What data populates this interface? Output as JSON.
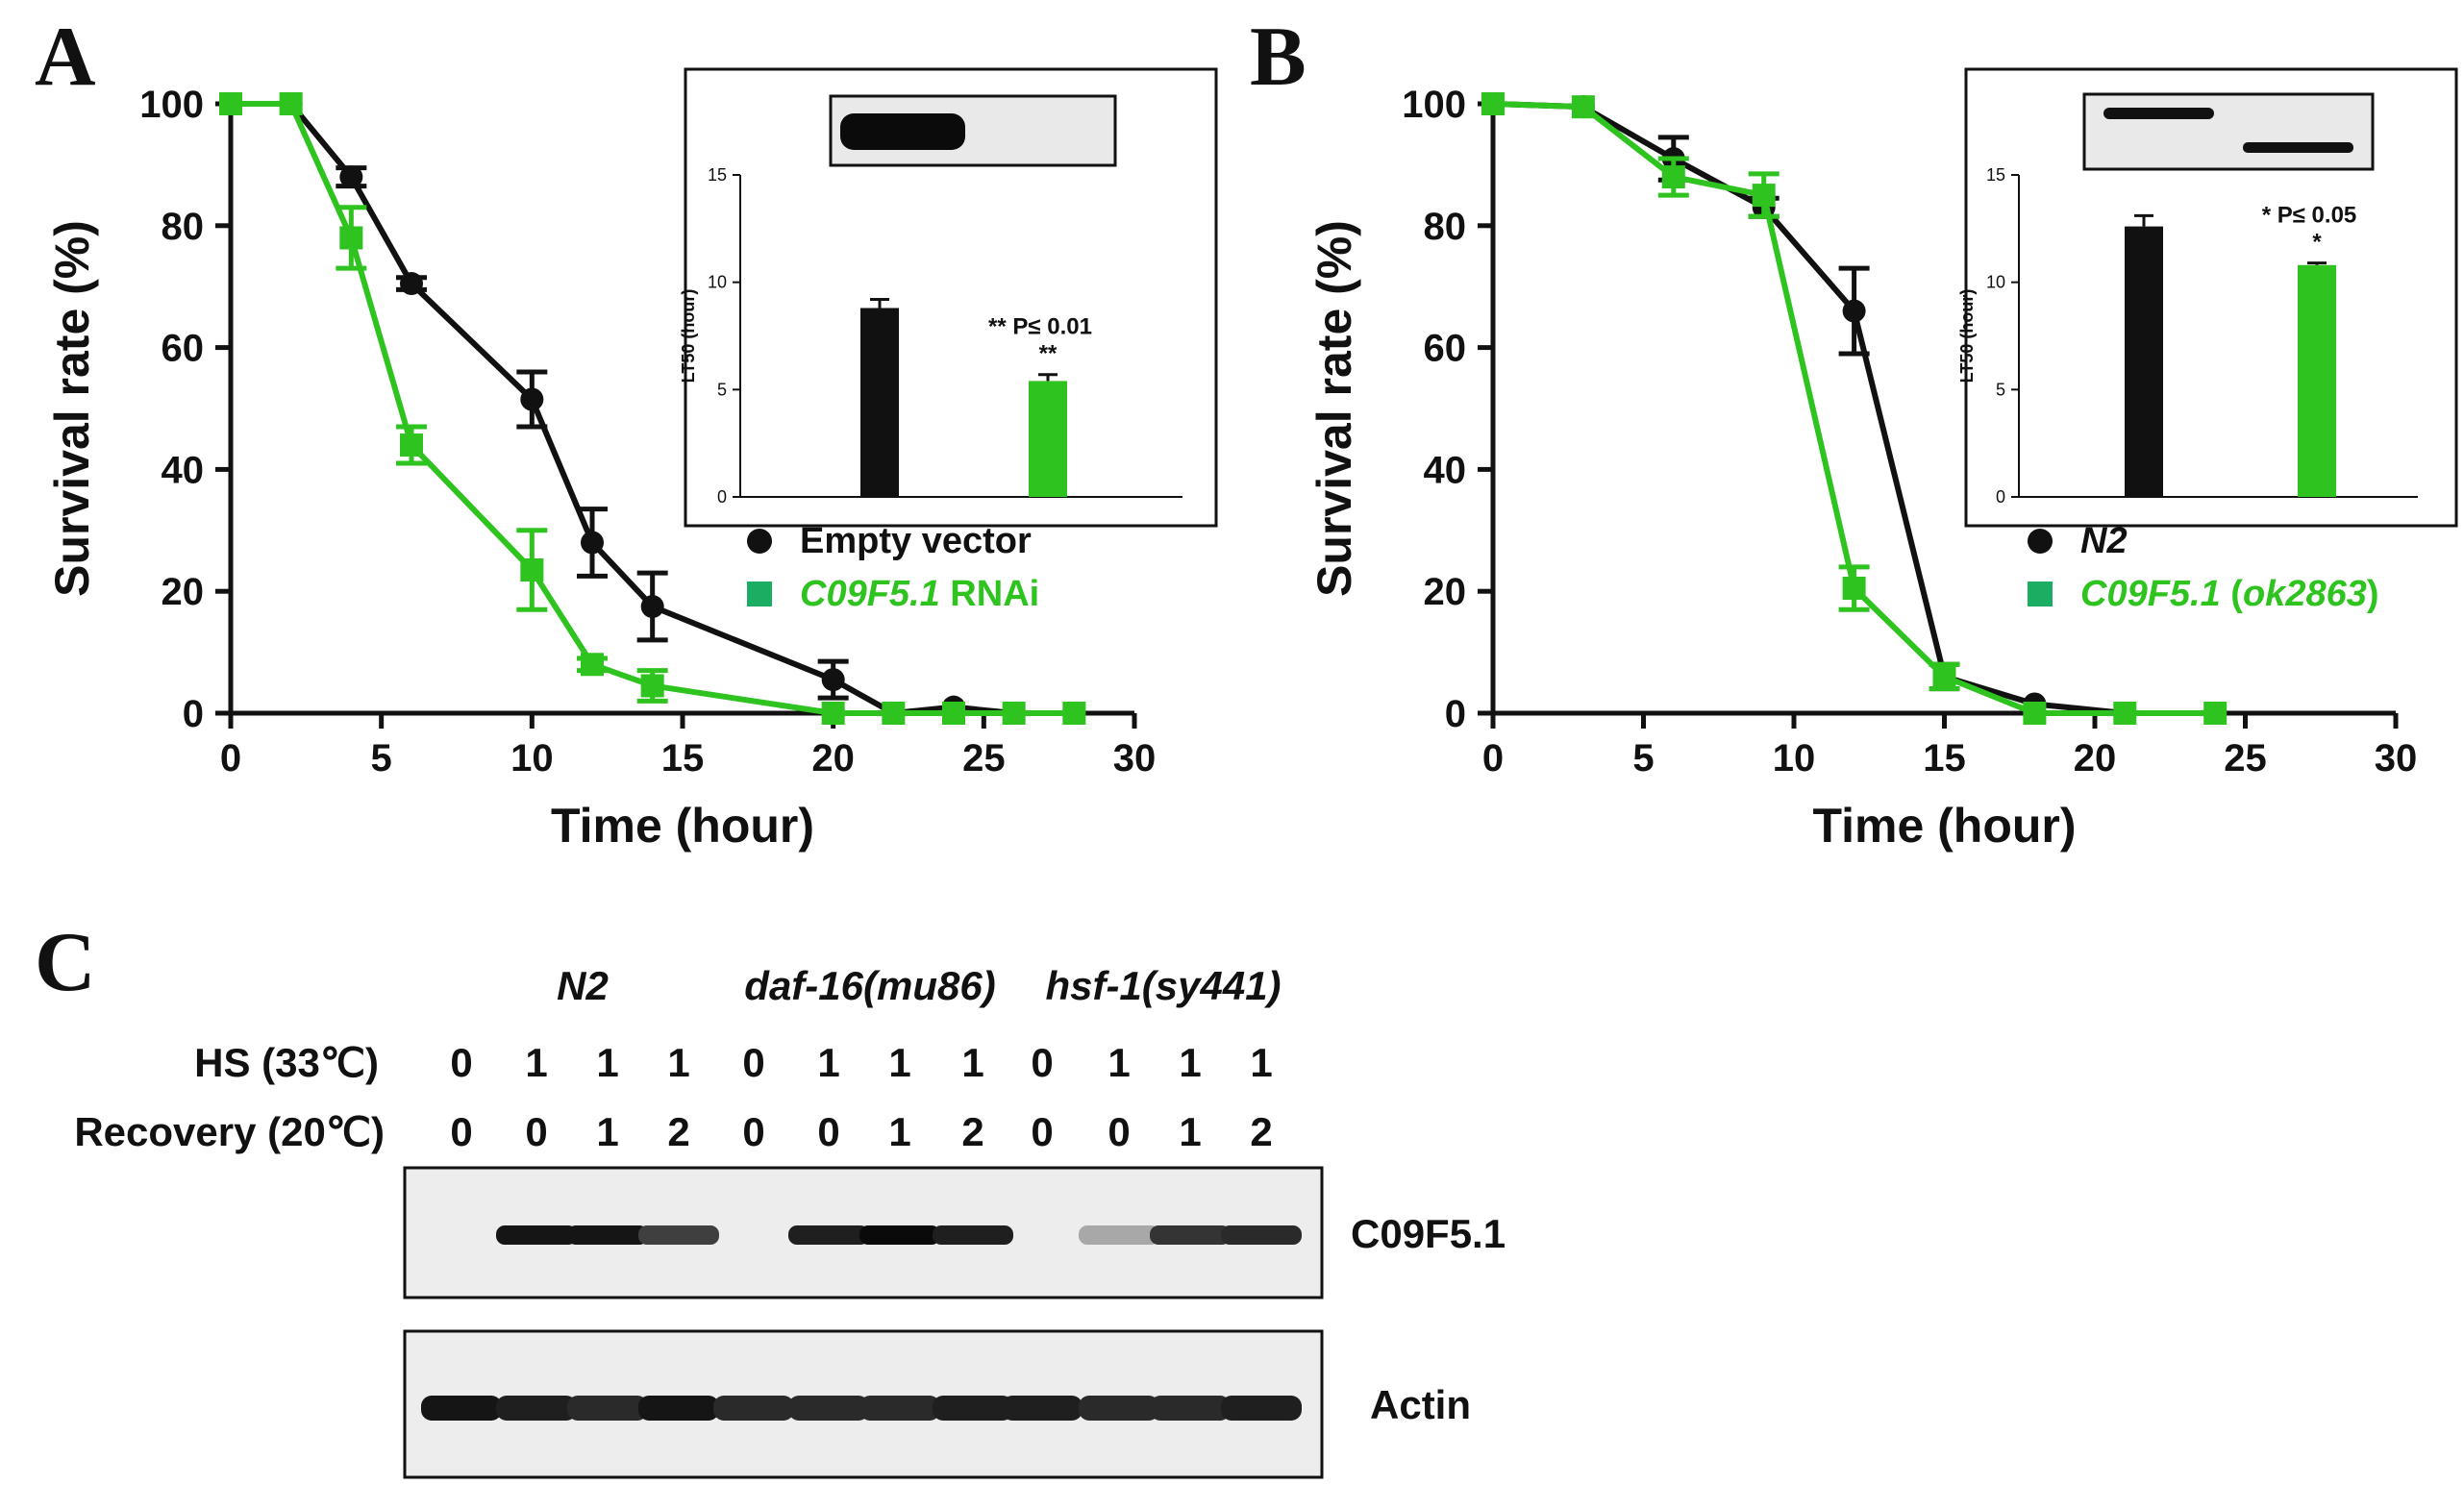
{
  "panels": {
    "a": "A",
    "b": "B",
    "c": "C"
  },
  "colors": {
    "black_series": "#111111",
    "green_series": "#2ec31f"
  },
  "chart_data": [
    {
      "panel": "A",
      "type": "line",
      "xlabel": "Time (hour)",
      "ylabel": "Survival rate (%)",
      "xlim": [
        0,
        30
      ],
      "ylim": [
        0,
        100
      ],
      "xticks": [
        0,
        5,
        10,
        15,
        20,
        25,
        30
      ],
      "yticks": [
        0,
        20,
        40,
        60,
        80,
        100
      ],
      "series": [
        {
          "name": "Empty vector",
          "label_italic": "",
          "label_plain": "Empty vector",
          "marker": "circle",
          "color": "#111111",
          "x": [
            0,
            2,
            4,
            6,
            10,
            12,
            14,
            20,
            22,
            24,
            26,
            28
          ],
          "y": [
            100,
            100,
            88,
            70.5,
            51.5,
            28,
            17.5,
            5.5,
            0,
            1,
            0,
            0
          ],
          "err": [
            0,
            0,
            1.5,
            1,
            4.5,
            5.5,
            5.5,
            3,
            0,
            0,
            0,
            0
          ]
        },
        {
          "name": "C09F5.1 RNAi",
          "label_italic": "C09F5.1",
          "label_plain": " RNAi",
          "marker": "square",
          "color": "#2ec31f",
          "x": [
            0,
            2,
            4,
            6,
            10,
            12,
            14,
            20,
            22,
            24,
            26,
            28
          ],
          "y": [
            100,
            100,
            78,
            44,
            23.5,
            8,
            4.5,
            0,
            0,
            0,
            0,
            0
          ],
          "err": [
            0,
            0,
            5,
            3,
            6.5,
            1,
            2.5,
            0,
            0,
            0,
            0,
            0
          ]
        }
      ],
      "inset": {
        "type": "bar",
        "ylabel": "LT50 (hour)",
        "ylim": [
          0,
          15
        ],
        "yticks": [
          0,
          5,
          10,
          15
        ],
        "values": [
          8.8,
          5.4
        ],
        "errors": [
          0.4,
          0.3
        ],
        "colors": [
          "#111111",
          "#2ec31f"
        ],
        "significance": "** P≤ 0.01",
        "stars": "**"
      }
    },
    {
      "panel": "B",
      "type": "line",
      "xlabel": "Time (hour)",
      "ylabel": "Survival rate (%)",
      "xlim": [
        0,
        30
      ],
      "ylim": [
        0,
        100
      ],
      "xticks": [
        0,
        5,
        10,
        15,
        20,
        25,
        30
      ],
      "yticks": [
        0,
        20,
        40,
        60,
        80,
        100
      ],
      "series": [
        {
          "name": "N2",
          "label_italic": "N2",
          "label_plain": "",
          "marker": "circle",
          "color": "#111111",
          "x": [
            0,
            3,
            6,
            9,
            12,
            15,
            18,
            21,
            24
          ],
          "y": [
            100,
            99.5,
            91,
            83,
            66,
            6,
            1.5,
            0,
            0
          ],
          "err": [
            0,
            0,
            3.5,
            1.5,
            7,
            2,
            0,
            0,
            0
          ]
        },
        {
          "name": "C09F5.1 (ok2863)",
          "label_italic": "C09F5.1",
          "label_plain": " (",
          "label_italic2": "ok2863",
          "label_plain2": ")",
          "marker": "square",
          "color": "#2ec31f",
          "x": [
            0,
            3,
            6,
            9,
            12,
            15,
            18,
            21,
            24
          ],
          "y": [
            100,
            99.5,
            88,
            85,
            20.5,
            6,
            0,
            0,
            0
          ],
          "err": [
            0,
            0,
            3,
            3.5,
            3.5,
            2,
            0,
            0,
            0
          ]
        }
      ],
      "inset": {
        "type": "bar",
        "ylabel": "LT50 (hour)",
        "ylim": [
          0,
          15
        ],
        "yticks": [
          0,
          5,
          10,
          15
        ],
        "values": [
          12.6,
          10.8
        ],
        "errors": [
          0.5,
          0.1
        ],
        "colors": [
          "#111111",
          "#2ec31f"
        ],
        "significance": "* P≤ 0.05",
        "stars": "*"
      }
    }
  ],
  "blot": {
    "groups": [
      "N2",
      "daf-16(mu86)",
      "hsf-1(sy441)"
    ],
    "hs_label": "HS (33℃)",
    "recovery_label": "Recovery (20℃)",
    "hs_values": [
      "0",
      "1",
      "1",
      "1",
      "0",
      "1",
      "1",
      "1",
      "0",
      "1",
      "1",
      "1"
    ],
    "recovery_values": [
      "0",
      "0",
      "1",
      "2",
      "0",
      "0",
      "1",
      "2",
      "0",
      "0",
      "1",
      "2"
    ],
    "band1_label": "C09F5.1",
    "band2_label": "Actin",
    "band1_intensity": [
      0,
      0.95,
      0.95,
      0.75,
      0,
      0.9,
      1,
      0.9,
      0,
      0.25,
      0.8,
      0.85
    ],
    "band2_intensity": [
      0.95,
      0.9,
      0.85,
      0.95,
      0.85,
      0.85,
      0.85,
      0.9,
      0.9,
      0.85,
      0.85,
      0.9
    ]
  }
}
